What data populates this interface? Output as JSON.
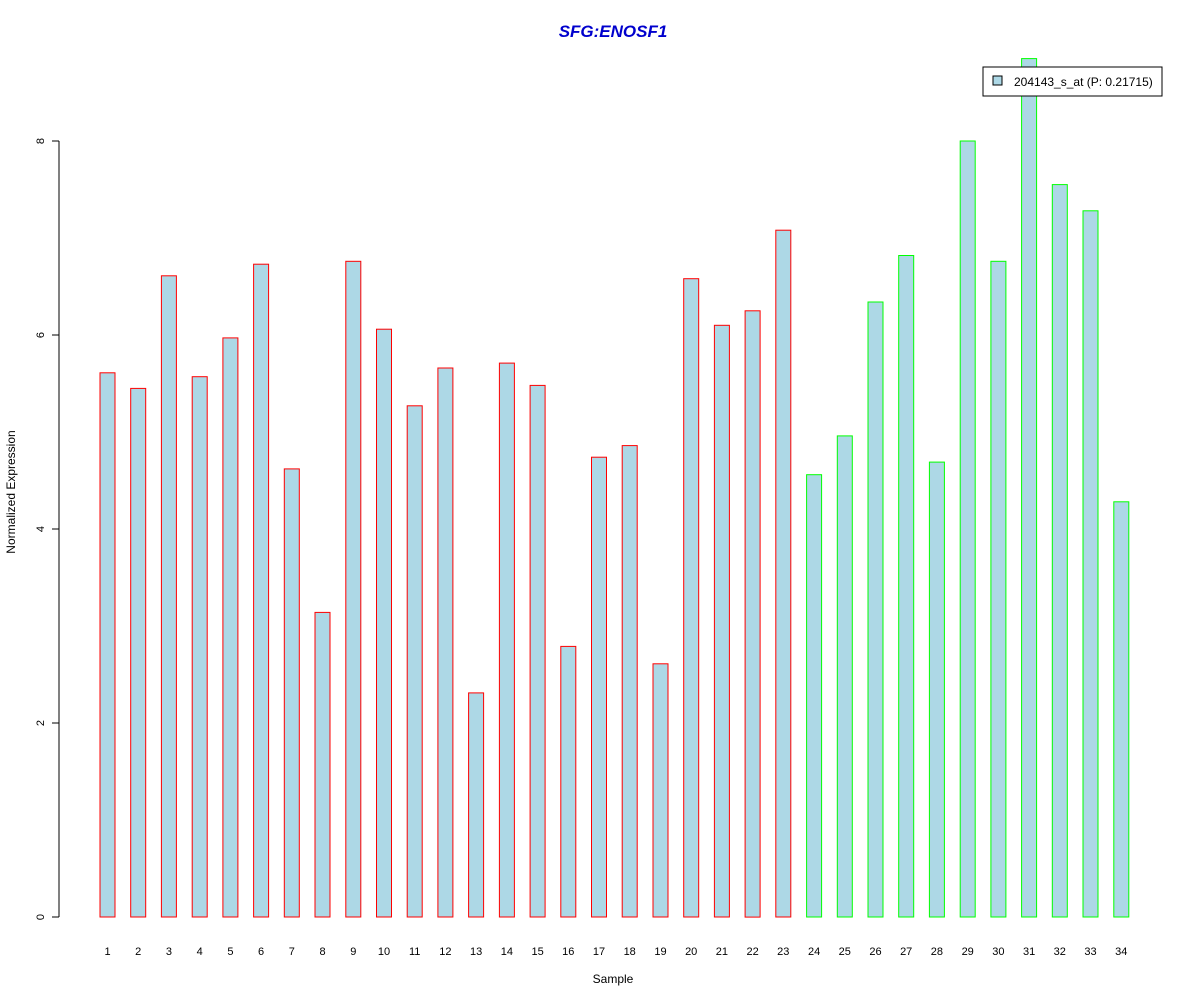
{
  "chart_data": {
    "type": "bar",
    "title": "SFG:ENOSF1",
    "xlabel": "Sample",
    "ylabel": "Normalized Expression",
    "ylim": [
      0,
      8
    ],
    "yticks": [
      0,
      2,
      4,
      6,
      8
    ],
    "grid": false,
    "legend_placement": "top-right",
    "categories": [
      "1",
      "2",
      "3",
      "4",
      "5",
      "6",
      "7",
      "8",
      "9",
      "10",
      "11",
      "12",
      "13",
      "14",
      "15",
      "16",
      "17",
      "18",
      "19",
      "20",
      "21",
      "22",
      "23",
      "24",
      "25",
      "26",
      "27",
      "28",
      "29",
      "30",
      "31",
      "32",
      "33",
      "34"
    ],
    "series": [
      {
        "name": "204143_s_at (P: 0.21715)",
        "values": [
          5.61,
          5.45,
          6.61,
          5.57,
          5.97,
          6.73,
          4.62,
          3.14,
          6.76,
          6.06,
          5.27,
          5.66,
          2.31,
          5.71,
          5.48,
          2.79,
          4.74,
          4.86,
          2.61,
          6.58,
          6.1,
          6.25,
          7.08,
          4.56,
          4.96,
          6.34,
          6.82,
          4.69,
          8.0,
          6.76,
          8.85,
          7.55,
          7.28,
          4.28
        ]
      }
    ],
    "group_outline": [
      "red",
      "red",
      "red",
      "red",
      "red",
      "red",
      "red",
      "red",
      "red",
      "red",
      "red",
      "red",
      "red",
      "red",
      "red",
      "red",
      "red",
      "red",
      "red",
      "red",
      "red",
      "red",
      "red",
      "green",
      "green",
      "green",
      "green",
      "green",
      "green",
      "green",
      "green",
      "green",
      "green",
      "green"
    ],
    "colors": {
      "bar_fill": "#add8e6",
      "outline_red": "#ff0000",
      "outline_green": "#00ff00",
      "title": "#0000cd",
      "axis": "#000000"
    }
  }
}
